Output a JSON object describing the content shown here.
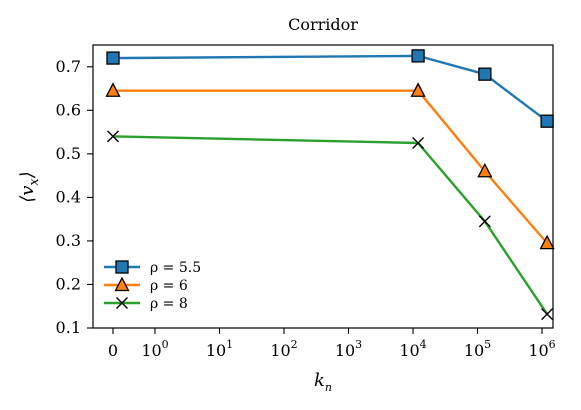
{
  "chart_data": {
    "type": "line",
    "title": "Corridor",
    "xlabel": "k_n",
    "ylabel": "⟨v_x⟩",
    "x_scale": "symlog",
    "x_ticks": [
      {
        "value": 0,
        "base": "0",
        "exp": ""
      },
      {
        "value": 1,
        "base": "10",
        "exp": "0"
      },
      {
        "value": 10,
        "base": "10",
        "exp": "1"
      },
      {
        "value": 100,
        "base": "10",
        "exp": "2"
      },
      {
        "value": 1000,
        "base": "10",
        "exp": "3"
      },
      {
        "value": 10000,
        "base": "10",
        "exp": "4"
      },
      {
        "value": 100000,
        "base": "10",
        "exp": "5"
      },
      {
        "value": 1000000,
        "base": "10",
        "exp": "6"
      }
    ],
    "ylim": [
      0.1,
      0.75
    ],
    "y_ticks": [
      "0.1",
      "0.2",
      "0.3",
      "0.4",
      "0.5",
      "0.6",
      "0.7"
    ],
    "grid": false,
    "legend_position": "lower-left",
    "x": [
      0,
      12000,
      130000,
      1200000
    ],
    "series": [
      {
        "name": "ρ = 5.5",
        "color": "#1f77b4",
        "marker": "square",
        "values": [
          0.72,
          0.725,
          0.683,
          0.575
        ]
      },
      {
        "name": "ρ = 6",
        "color": "#ff7f0e",
        "marker": "triangle",
        "values": [
          0.645,
          0.645,
          0.46,
          0.295
        ]
      },
      {
        "name": "ρ = 8",
        "color": "#2ca02c",
        "marker": "x",
        "values": [
          0.54,
          0.525,
          0.345,
          0.132
        ]
      }
    ]
  }
}
